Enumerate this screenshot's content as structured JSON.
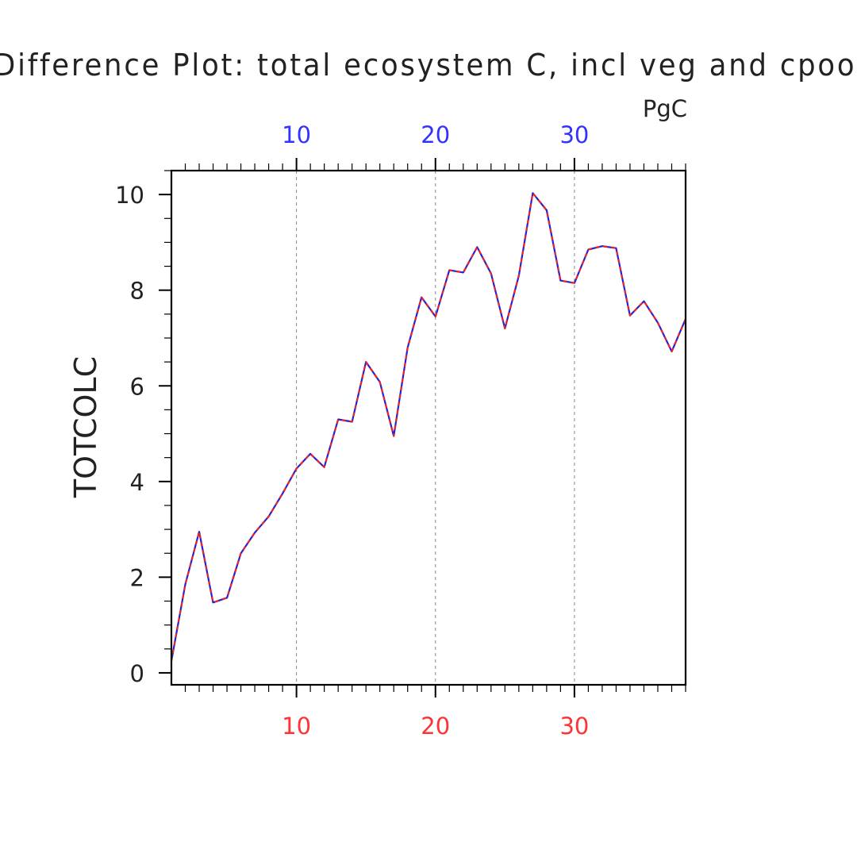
{
  "chart_data": {
    "type": "line",
    "title": "Difference Plot: total ecosystem C, incl veg and cpool",
    "units": "PgC",
    "ylabel": "TOTCOLC",
    "xlim": [
      1,
      38
    ],
    "ylim": [
      -0.25,
      10.5
    ],
    "x_ticks": [
      10,
      20,
      30
    ],
    "y_ticks": [
      0,
      2,
      4,
      6,
      8,
      10
    ],
    "x_tick_labels": [
      "10",
      "20",
      "30"
    ],
    "y_tick_labels": [
      "0",
      "2",
      "4",
      "6",
      "8",
      "10"
    ],
    "grid": "vertical dashed at major x ticks",
    "colors": {
      "top_axis_labels": "#3333ff",
      "bottom_axis_labels": "#ff3333",
      "series_solid": "#2222dd",
      "series_dash": "#ee2222"
    },
    "x": [
      1,
      2,
      3,
      4,
      5,
      6,
      7,
      8,
      9,
      10,
      11,
      12,
      13,
      14,
      15,
      16,
      17,
      18,
      19,
      20,
      21,
      22,
      23,
      24,
      25,
      26,
      27,
      28,
      29,
      30,
      31,
      32,
      33,
      34,
      35,
      36,
      37,
      38
    ],
    "series": [
      {
        "values": [
          0.25,
          1.85,
          2.95,
          1.47,
          1.57,
          2.5,
          2.93,
          3.27,
          3.75,
          4.27,
          4.58,
          4.3,
          5.3,
          5.25,
          6.5,
          6.08,
          4.95,
          6.8,
          7.85,
          7.45,
          8.42,
          8.37,
          8.9,
          8.35,
          7.2,
          8.3,
          10.03,
          9.67,
          8.2,
          8.15,
          8.85,
          8.92,
          8.88,
          7.47,
          7.77,
          7.32,
          6.72,
          7.4
        ]
      }
    ]
  }
}
